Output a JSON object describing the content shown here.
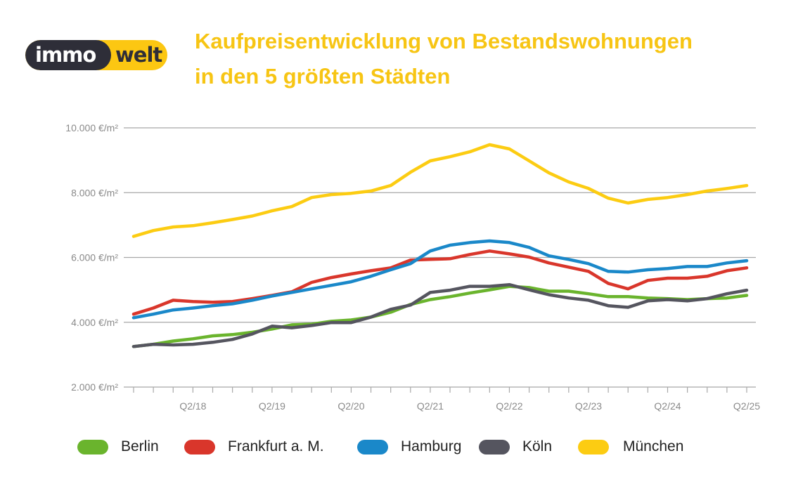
{
  "logo": {
    "part1": "immo",
    "part2": "welt"
  },
  "title_line1": "Kaufpreisentwicklung von Bestandswohnungen",
  "title_line2": "in den 5 größten Städten",
  "chart_data": {
    "type": "line",
    "title": "Kaufpreisentwicklung von Bestandswohnungen in den 5 größten Städten",
    "x": [
      "Q3/17",
      "Q4/17",
      "Q1/18",
      "Q2/18",
      "Q3/18",
      "Q4/18",
      "Q1/19",
      "Q2/19",
      "Q3/19",
      "Q4/19",
      "Q1/20",
      "Q2/20",
      "Q3/20",
      "Q4/20",
      "Q1/21",
      "Q2/21",
      "Q3/21",
      "Q4/21",
      "Q1/22",
      "Q2/22",
      "Q3/22",
      "Q4/22",
      "Q1/23",
      "Q2/23",
      "Q3/23",
      "Q4/23",
      "Q1/24",
      "Q2/24",
      "Q3/24",
      "Q4/24",
      "Q1/25",
      "Q2/25"
    ],
    "x_tick_labels": [
      "Q2/18",
      "Q2/19",
      "Q2/20",
      "Q2/21",
      "Q2/22",
      "Q2/23",
      "Q2/24",
      "Q2/25"
    ],
    "y_tick_labels": [
      "2.000 €/m²",
      "4.000 €/m²",
      "6.000 €/m²",
      "8.000 €/m²",
      "10.000 €/m²"
    ],
    "y_ticks": [
      2000,
      4000,
      6000,
      8000,
      10000
    ],
    "ylim": [
      2000,
      10000
    ],
    "grid": "horizontal",
    "legend_position": "bottom",
    "series": [
      {
        "name": "Berlin",
        "color": "#6ab42d",
        "values": [
          3250,
          3320,
          3420,
          3490,
          3580,
          3620,
          3690,
          3790,
          3920,
          3940,
          4030,
          4070,
          4160,
          4310,
          4550,
          4700,
          4790,
          4900,
          5000,
          5110,
          5070,
          4960,
          4960,
          4880,
          4790,
          4790,
          4750,
          4730,
          4700,
          4730,
          4750,
          4830
        ]
      },
      {
        "name": "Frankfurt a. M.",
        "color": "#d9362b",
        "values": [
          4250,
          4440,
          4680,
          4640,
          4620,
          4640,
          4730,
          4830,
          4940,
          5230,
          5380,
          5490,
          5590,
          5680,
          5920,
          5940,
          5960,
          6090,
          6200,
          6110,
          6010,
          5830,
          5700,
          5570,
          5200,
          5030,
          5290,
          5360,
          5360,
          5420,
          5590,
          5680
        ]
      },
      {
        "name": "Hamburg",
        "color": "#1a88c9",
        "values": [
          4140,
          4250,
          4380,
          4440,
          4510,
          4570,
          4680,
          4810,
          4920,
          5030,
          5140,
          5250,
          5420,
          5620,
          5810,
          6200,
          6380,
          6460,
          6510,
          6460,
          6310,
          6050,
          5940,
          5810,
          5570,
          5550,
          5620,
          5660,
          5720,
          5720,
          5830,
          5900
        ]
      },
      {
        "name": "Köln",
        "color": "#55555f",
        "values": [
          3250,
          3320,
          3300,
          3320,
          3380,
          3470,
          3640,
          3880,
          3830,
          3900,
          3990,
          3990,
          4160,
          4400,
          4530,
          4920,
          4990,
          5110,
          5110,
          5160,
          5000,
          4850,
          4750,
          4680,
          4510,
          4460,
          4660,
          4700,
          4660,
          4730,
          4880,
          4990
        ]
      },
      {
        "name": "München",
        "color": "#fccc12",
        "values": [
          6650,
          6830,
          6940,
          6980,
          7070,
          7170,
          7280,
          7440,
          7570,
          7850,
          7940,
          7980,
          8050,
          8220,
          8630,
          8980,
          9110,
          9260,
          9480,
          9350,
          8980,
          8610,
          8330,
          8130,
          7830,
          7680,
          7790,
          7850,
          7940,
          8050,
          8130,
          8220
        ]
      }
    ]
  }
}
